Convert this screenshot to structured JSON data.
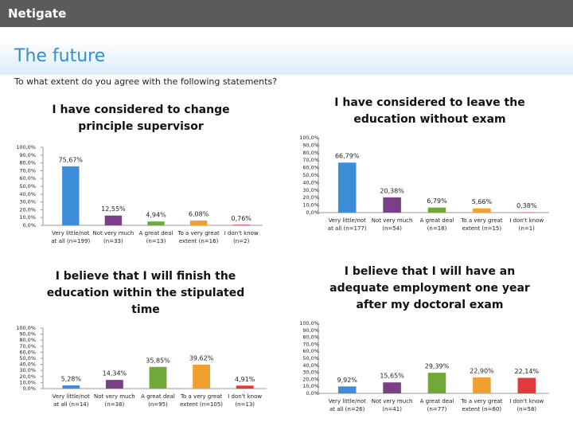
{
  "header": {
    "logo": "Netigate",
    "title": "The future",
    "subtitle": "To what extent do you agree with the following statements?"
  },
  "chart_data": [
    {
      "type": "bar",
      "title": "I have considered to change principle supervisor",
      "categories": [
        "Very little/not at all (n=199)",
        "Not very much (n=33)",
        "A great deal (n=13)",
        "To a very great extent (n=16)",
        "I don't know (n=2)"
      ],
      "values": [
        75.67,
        12.55,
        4.94,
        6.08,
        0.76
      ],
      "value_labels": [
        "75,67%",
        "12,55%",
        "4,94%",
        "6,08%",
        "0,76%"
      ],
      "colors": [
        "#3d8ed8",
        "#7b3f87",
        "#70a83a",
        "#f0a030",
        "#e03a3a"
      ],
      "ylim": [
        0,
        100
      ],
      "yticks": [
        {
          "value": 0,
          "label": "0,0%"
        },
        {
          "value": 10,
          "label": "10,0%"
        },
        {
          "value": 20,
          "label": "20,0%"
        },
        {
          "value": 30,
          "label": "30,0%"
        },
        {
          "value": 40,
          "label": "40,0%"
        },
        {
          "value": 50,
          "label": "50,0%"
        },
        {
          "value": 60,
          "label": "60,0%"
        },
        {
          "value": 70,
          "label": "70,0%"
        },
        {
          "value": 80,
          "label": "80,0%"
        },
        {
          "value": 90,
          "label": "90,0%"
        },
        {
          "value": 100,
          "label": "100,0%"
        }
      ]
    },
    {
      "type": "bar",
      "title": "I have considered to leave the education without exam",
      "categories": [
        "Very little/not at all (n=177)",
        "Not very much (n=54)",
        "A great deal (n=18)",
        "To a very great extent (n=15)",
        "I don't know (n=1)"
      ],
      "values": [
        66.79,
        20.38,
        6.79,
        5.66,
        0.38
      ],
      "value_labels": [
        "66,79%",
        "20,38%",
        "6,79%",
        "5,66%",
        "0,38%"
      ],
      "colors": [
        "#3d8ed8",
        "#7b3f87",
        "#70a83a",
        "#f0a030",
        "#e03a3a"
      ],
      "ylim": [
        0,
        100
      ],
      "yticks": [
        {
          "value": 0,
          "label": "0,0%"
        },
        {
          "value": 10,
          "label": "10,0%"
        },
        {
          "value": 20,
          "label": "20,0%"
        },
        {
          "value": 30,
          "label": "30,0%"
        },
        {
          "value": 40,
          "label": "40,0%"
        },
        {
          "value": 50,
          "label": "50,0%"
        },
        {
          "value": 60,
          "label": "60,0%"
        },
        {
          "value": 70,
          "label": "70,0%"
        },
        {
          "value": 80,
          "label": "80,0%"
        },
        {
          "value": 90,
          "label": "90,0%"
        },
        {
          "value": 100,
          "label": "100,0%"
        }
      ]
    },
    {
      "type": "bar",
      "title": "I believe that I will finish the education within the stipulated time",
      "categories": [
        "Very little/not at all (n=14)",
        "Not very much (n=38)",
        "A great deal (n=95)",
        "To a very great extent (n=105)",
        "I don't know (n=13)"
      ],
      "values": [
        5.28,
        14.34,
        35.85,
        39.62,
        4.91
      ],
      "value_labels": [
        "5,28%",
        "14,34%",
        "35,85%",
        "39,62%",
        "4,91%"
      ],
      "colors": [
        "#3d8ed8",
        "#7b3f87",
        "#70a83a",
        "#f0a030",
        "#e03a3a"
      ],
      "ylim": [
        0,
        100
      ],
      "yticks": [
        {
          "value": 0,
          "label": "0,0%"
        },
        {
          "value": 10,
          "label": "10,0%"
        },
        {
          "value": 20,
          "label": "20,0%"
        },
        {
          "value": 30,
          "label": "30,0%"
        },
        {
          "value": 40,
          "label": "40,0%"
        },
        {
          "value": 50,
          "label": "50,0%"
        },
        {
          "value": 60,
          "label": "60,0%"
        },
        {
          "value": 70,
          "label": "70,0%"
        },
        {
          "value": 80,
          "label": "80,0%"
        },
        {
          "value": 90,
          "label": "90,0%"
        },
        {
          "value": 100,
          "label": "100,0%"
        }
      ]
    },
    {
      "type": "bar",
      "title": "I believe that I will have an adequate employment one year after my doctoral exam",
      "categories": [
        "Very little/not at all (n=26)",
        "Not very much (n=41)",
        "A great deal (n=77)",
        "To a very great extent (n=60)",
        "I don't know (n=58)"
      ],
      "values": [
        9.92,
        15.65,
        29.39,
        22.9,
        22.14
      ],
      "value_labels": [
        "9,92%",
        "15,65%",
        "29,39%",
        "22,90%",
        "22,14%"
      ],
      "colors": [
        "#3d8ed8",
        "#7b3f87",
        "#70a83a",
        "#f0a030",
        "#e03a3a"
      ],
      "ylim": [
        0,
        100
      ],
      "yticks": [
        {
          "value": 0,
          "label": "0,0%"
        },
        {
          "value": 10,
          "label": "10,0%"
        },
        {
          "value": 20,
          "label": "20,0%"
        },
        {
          "value": 30,
          "label": "30,0%"
        },
        {
          "value": 40,
          "label": "40,0%"
        },
        {
          "value": 50,
          "label": "50,0%"
        },
        {
          "value": 60,
          "label": "60,0%"
        },
        {
          "value": 70,
          "label": "70,0%"
        },
        {
          "value": 80,
          "label": "80,0%"
        },
        {
          "value": 90,
          "label": "90,0%"
        },
        {
          "value": 100,
          "label": "100,0%"
        }
      ]
    }
  ]
}
